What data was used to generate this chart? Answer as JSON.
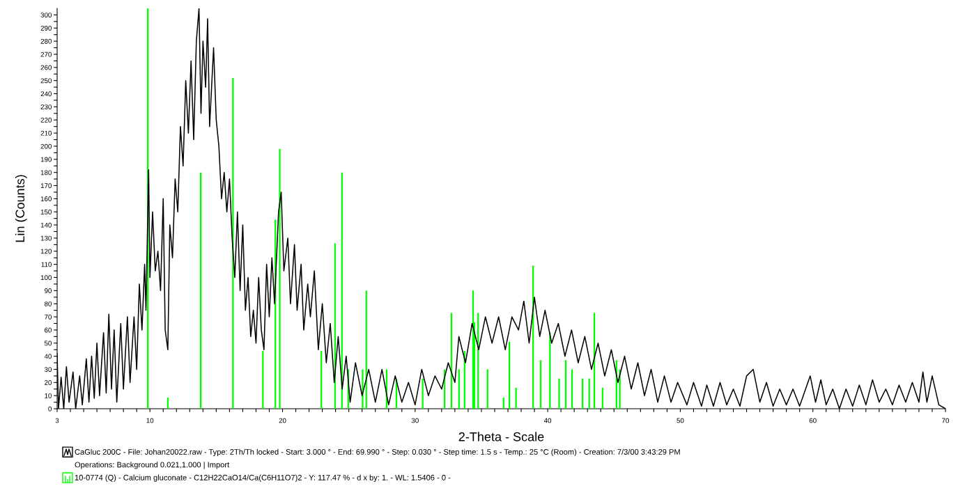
{
  "chart_data": {
    "type": "line",
    "xlabel": "2-Theta - Scale",
    "ylabel": "Lin (Counts)",
    "xlim": [
      3,
      70
    ],
    "ylim": [
      0,
      305
    ],
    "xticks": [
      3,
      {
        "value": 4,
        "label": null
      },
      {
        "value": 5,
        "label": null
      },
      {
        "value": 6,
        "label": null
      },
      {
        "value": 7,
        "label": null
      },
      {
        "value": 8,
        "label": null
      },
      {
        "value": 9,
        "label": null
      },
      10,
      {
        "value": 11,
        "label": null
      },
      {
        "value": 12,
        "label": null
      },
      {
        "value": 13,
        "label": null
      },
      {
        "value": 14,
        "label": null
      },
      {
        "value": 15,
        "label": null
      },
      {
        "value": 16,
        "label": null
      },
      {
        "value": 17,
        "label": null
      },
      {
        "value": 18,
        "label": null
      },
      {
        "value": 19,
        "label": null
      },
      20,
      {
        "value": 21,
        "label": null
      },
      {
        "value": 22,
        "label": null
      },
      {
        "value": 23,
        "label": null
      },
      {
        "value": 24,
        "label": null
      },
      {
        "value": 25,
        "label": null
      },
      {
        "value": 26,
        "label": null
      },
      {
        "value": 27,
        "label": null
      },
      {
        "value": 28,
        "label": null
      },
      {
        "value": 29,
        "label": null
      },
      30,
      {
        "value": 31,
        "label": null
      },
      {
        "value": 32,
        "label": null
      },
      {
        "value": 33,
        "label": null
      },
      {
        "value": 34,
        "label": null
      },
      {
        "value": 35,
        "label": null
      },
      {
        "value": 36,
        "label": null
      },
      {
        "value": 37,
        "label": null
      },
      {
        "value": 38,
        "label": null
      },
      {
        "value": 39,
        "label": null
      },
      40,
      {
        "value": 41,
        "label": null
      },
      {
        "value": 42,
        "label": null
      },
      {
        "value": 43,
        "label": null
      },
      {
        "value": 44,
        "label": null
      },
      {
        "value": 45,
        "label": null
      },
      {
        "value": 46,
        "label": null
      },
      {
        "value": 47,
        "label": null
      },
      {
        "value": 48,
        "label": null
      },
      {
        "value": 49,
        "label": null
      },
      50,
      {
        "value": 51,
        "label": null
      },
      {
        "value": 52,
        "label": null
      },
      {
        "value": 53,
        "label": null
      },
      {
        "value": 54,
        "label": null
      },
      {
        "value": 55,
        "label": null
      },
      {
        "value": 56,
        "label": null
      },
      {
        "value": 57,
        "label": null
      },
      {
        "value": 58,
        "label": null
      },
      {
        "value": 59,
        "label": null
      },
      60,
      {
        "value": 61,
        "label": null
      },
      {
        "value": 62,
        "label": null
      },
      {
        "value": 63,
        "label": null
      },
      {
        "value": 64,
        "label": null
      },
      {
        "value": 65,
        "label": null
      },
      {
        "value": 66,
        "label": null
      },
      {
        "value": 67,
        "label": null
      },
      {
        "value": 68,
        "label": null
      },
      {
        "value": 69,
        "label": null
      },
      70
    ],
    "yticks": [
      0,
      {
        "value": 5,
        "label": null
      },
      10,
      {
        "value": 15,
        "label": null
      },
      20,
      {
        "value": 25,
        "label": null
      },
      30,
      {
        "value": 35,
        "label": null
      },
      40,
      {
        "value": 45,
        "label": null
      },
      50,
      {
        "value": 55,
        "label": null
      },
      60,
      {
        "value": 65,
        "label": null
      },
      70,
      {
        "value": 75,
        "label": null
      },
      80,
      {
        "value": 85,
        "label": null
      },
      90,
      {
        "value": 95,
        "label": null
      },
      100,
      {
        "value": 105,
        "label": null
      },
      110,
      {
        "value": 115,
        "label": null
      },
      120,
      {
        "value": 125,
        "label": null
      },
      130,
      {
        "value": 135,
        "label": null
      },
      140,
      {
        "value": 145,
        "label": null
      },
      150,
      {
        "value": 155,
        "label": null
      },
      160,
      {
        "value": 165,
        "label": null
      },
      170,
      {
        "value": 175,
        "label": null
      },
      180,
      {
        "value": 185,
        "label": null
      },
      190,
      {
        "value": 195,
        "label": null
      },
      200,
      {
        "value": 205,
        "label": null
      },
      210,
      {
        "value": 215,
        "label": null
      },
      220,
      {
        "value": 225,
        "label": null
      },
      230,
      {
        "value": 235,
        "label": null
      },
      240,
      {
        "value": 245,
        "label": null
      },
      250,
      {
        "value": 255,
        "label": null
      },
      260,
      {
        "value": 265,
        "label": null
      },
      270,
      {
        "value": 275,
        "label": null
      },
      280,
      {
        "value": 285,
        "label": null
      },
      290,
      {
        "value": 295,
        "label": null
      },
      300
    ],
    "grid": false,
    "legend": "bottom",
    "annotations": [
      "Operations: Background 0.021,1.000 | Import"
    ],
    "series": [
      {
        "name": "CaGluc 200C - File: Johan20022.raw - Type: 2Th/Th locked - Start: 3.000 ° - End: 69.990 ° - Step: 0.030 ° - Step time: 1.5 s - Temp.: 25 °C (Room) - Creation: 7/3/00 3:43:29 PM",
        "color": "#000000",
        "x": [
          3.0,
          3.1,
          3.3,
          3.5,
          3.7,
          3.9,
          4.2,
          4.4,
          4.7,
          4.9,
          5.2,
          5.4,
          5.6,
          5.8,
          6.0,
          6.2,
          6.5,
          6.7,
          6.9,
          7.1,
          7.3,
          7.5,
          7.8,
          8.0,
          8.3,
          8.5,
          8.8,
          9.0,
          9.2,
          9.4,
          9.6,
          9.7,
          9.9,
          10.0,
          10.2,
          10.4,
          10.6,
          10.8,
          11.0,
          11.15,
          11.35,
          11.5,
          11.7,
          11.9,
          12.1,
          12.3,
          12.5,
          12.7,
          12.9,
          13.1,
          13.3,
          13.5,
          13.7,
          13.85,
          14.0,
          14.2,
          14.35,
          14.5,
          14.8,
          15.0,
          15.2,
          15.4,
          15.6,
          15.8,
          16.0,
          16.2,
          16.4,
          16.6,
          16.8,
          17.0,
          17.2,
          17.4,
          17.6,
          17.8,
          18.0,
          18.2,
          18.4,
          18.6,
          18.8,
          19.0,
          19.2,
          19.4,
          19.7,
          19.9,
          20.1,
          20.4,
          20.6,
          20.9,
          21.1,
          21.4,
          21.6,
          21.9,
          22.1,
          22.4,
          22.7,
          23.0,
          23.3,
          23.6,
          23.9,
          24.2,
          24.5,
          24.8,
          25.1,
          25.5,
          26.0,
          26.5,
          27.0,
          27.5,
          28.0,
          28.5,
          29.0,
          29.5,
          30.0,
          30.5,
          31.0,
          31.5,
          32.0,
          32.5,
          33.0,
          33.3,
          33.8,
          34.3,
          34.8,
          35.3,
          35.8,
          36.3,
          36.8,
          37.3,
          37.8,
          38.2,
          38.6,
          39.0,
          39.4,
          39.8,
          40.3,
          40.8,
          41.3,
          41.8,
          42.3,
          42.8,
          43.3,
          43.8,
          44.3,
          44.8,
          45.3,
          45.8,
          46.3,
          46.8,
          47.3,
          47.8,
          48.3,
          48.8,
          49.3,
          49.8,
          50.5,
          51.0,
          51.6,
          52.0,
          52.5,
          53.0,
          53.5,
          54.0,
          54.5,
          55.0,
          55.5,
          56.0,
          56.5,
          57.0,
          57.5,
          58.0,
          58.5,
          59.0,
          59.8,
          60.2,
          60.6,
          61.0,
          61.5,
          62.0,
          62.5,
          63.0,
          63.5,
          64.0,
          64.5,
          65.0,
          65.5,
          66.0,
          66.5,
          67.0,
          67.5,
          68.0,
          68.3,
          68.6,
          69.0,
          69.5,
          70.0
        ],
        "values": [
          42,
          0,
          24,
          0,
          32,
          5,
          28,
          0,
          25,
          3,
          38,
          5,
          40,
          8,
          50,
          10,
          58,
          12,
          72,
          15,
          60,
          5,
          65,
          15,
          70,
          20,
          70,
          30,
          95,
          60,
          110,
          75,
          182,
          100,
          150,
          105,
          120,
          90,
          160,
          60,
          45,
          140,
          115,
          175,
          150,
          215,
          185,
          250,
          210,
          265,
          205,
          280,
          305,
          225,
          280,
          245,
          297,
          215,
          275,
          220,
          200,
          160,
          180,
          150,
          175,
          130,
          100,
          150,
          90,
          140,
          75,
          100,
          55,
          75,
          50,
          100,
          60,
          45,
          110,
          70,
          115,
          80,
          150,
          165,
          105,
          130,
          80,
          125,
          75,
          110,
          60,
          95,
          70,
          105,
          45,
          80,
          35,
          65,
          20,
          55,
          15,
          40,
          5,
          35,
          10,
          30,
          5,
          30,
          3,
          25,
          5,
          20,
          3,
          30,
          10,
          25,
          15,
          35,
          20,
          55,
          35,
          65,
          45,
          70,
          50,
          70,
          45,
          70,
          60,
          82,
          50,
          85,
          55,
          75,
          50,
          65,
          40,
          60,
          35,
          55,
          30,
          50,
          25,
          45,
          20,
          40,
          15,
          35,
          10,
          30,
          5,
          25,
          5,
          20,
          3,
          20,
          2,
          18,
          2,
          20,
          3,
          15,
          2,
          25,
          30,
          5,
          20,
          2,
          15,
          3,
          15,
          2,
          25,
          5,
          22,
          3,
          15,
          0,
          15,
          2,
          18,
          3,
          22,
          5,
          15,
          3,
          18,
          5,
          20,
          5,
          28,
          5,
          25,
          3,
          0
        ]
      },
      {
        "name": "10-0774 (Q) - Calcium gluconate - C12H22CaO14/Ca(C6H11O7)2 - Y: 117.47 % - d x by: 1. - WL: 1.5406 - 0 -",
        "type": "bar",
        "color": "#00ff00",
        "x": [
          9.84,
          11.35,
          13.83,
          16.26,
          18.52,
          19.46,
          19.79,
          22.93,
          23.96,
          24.48,
          24.96,
          26.04,
          26.32,
          27.85,
          28.59,
          30.57,
          32.22,
          32.74,
          33.31,
          33.73,
          34.37,
          34.47,
          34.75,
          35.46,
          36.67,
          37.11,
          37.61,
          38.9,
          39.47,
          40.17,
          40.86,
          41.36,
          41.84,
          42.63,
          43.13,
          43.52,
          44.14,
          45.19,
          45.44
        ],
        "values": [
          305,
          8.5,
          180,
          252,
          44,
          144,
          198,
          44,
          126,
          180,
          30,
          30,
          90,
          30,
          23,
          23,
          30,
          73,
          30,
          44,
          90,
          66,
          73,
          30,
          8.5,
          51,
          16,
          109,
          37,
          58,
          23,
          37,
          30,
          23,
          23,
          73,
          16,
          37,
          30
        ]
      }
    ]
  }
}
